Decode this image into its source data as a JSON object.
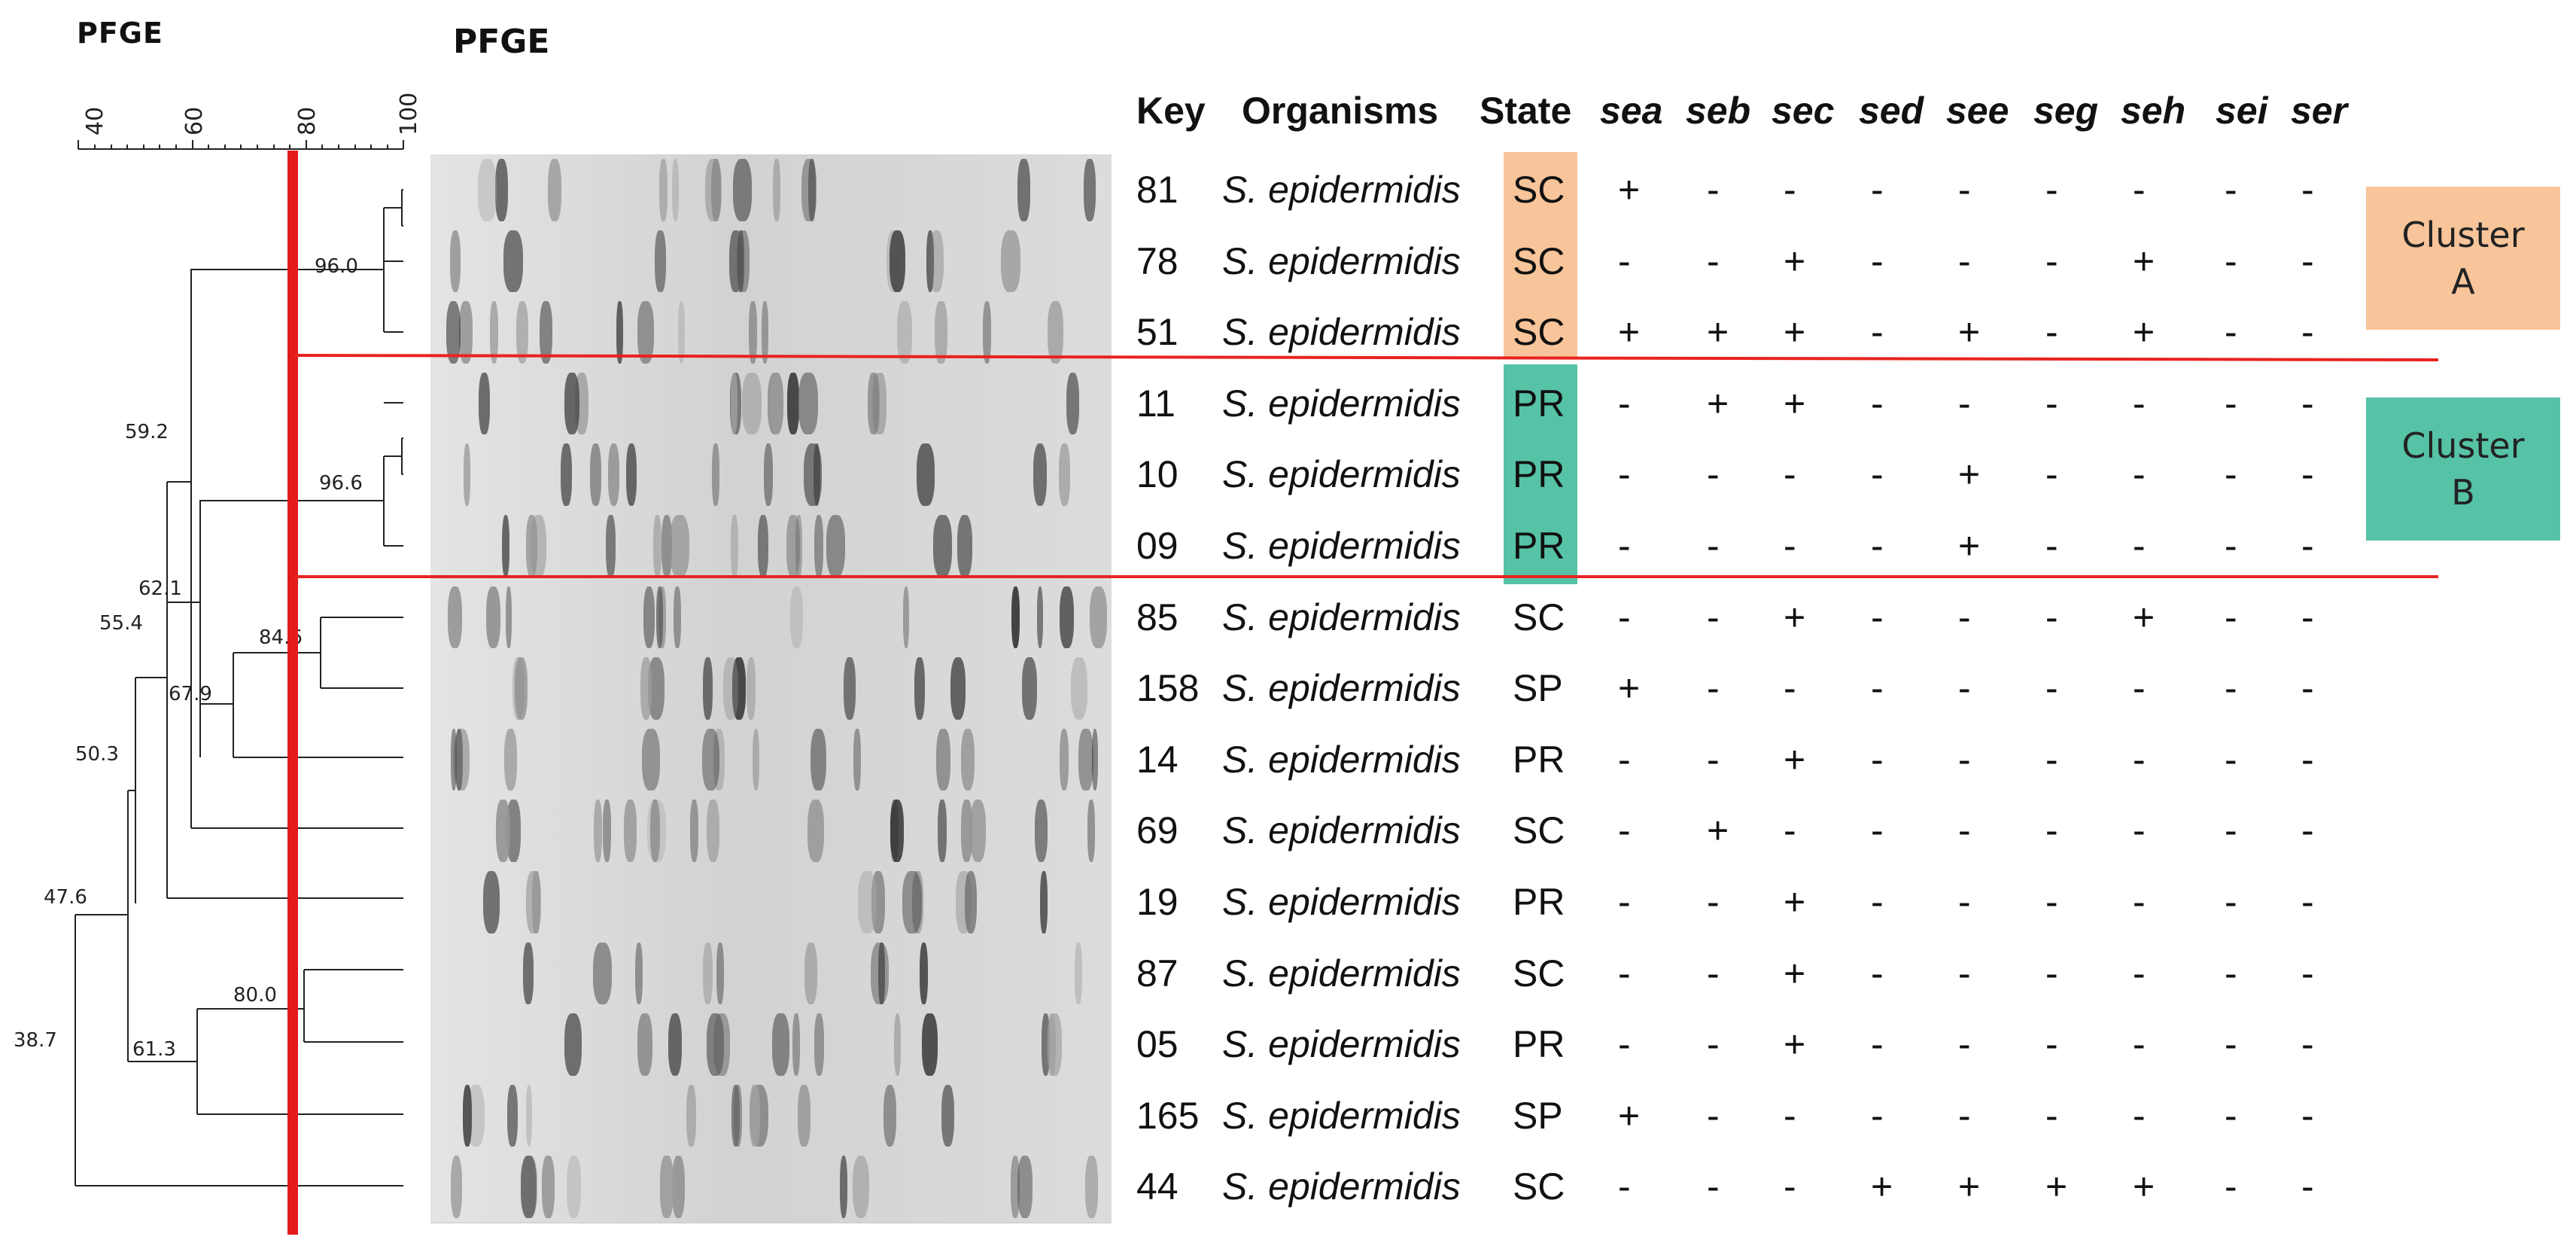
{
  "labels": {
    "pfge_small": "PFGE",
    "pfge_big": "PFGE"
  },
  "scale": {
    "ticks": [
      "40",
      "60",
      "80",
      "100"
    ]
  },
  "headers": {
    "key": "Key",
    "organisms": "Organisms",
    "state": "State",
    "genes": [
      "sea",
      "seb",
      "sec",
      "sed",
      "see",
      "seg",
      "seh",
      "sei",
      "ser"
    ]
  },
  "node_labels": [
    "96.0",
    "59.2",
    "96.6",
    "62.1",
    "55.4",
    "84.6",
    "67.9",
    "50.3",
    "47.6",
    "80.0",
    "61.3",
    "38.7"
  ],
  "rows": [
    {
      "key": "81",
      "organism": "S. epidermidis",
      "state": "SC",
      "genes": [
        "+",
        "-",
        "-",
        "-",
        "-",
        "-",
        "-",
        "-",
        "-"
      ]
    },
    {
      "key": "78",
      "organism": "S. epidermidis",
      "state": "SC",
      "genes": [
        "-",
        "-",
        "+",
        "-",
        "-",
        "-",
        "+",
        "-",
        "-"
      ]
    },
    {
      "key": "51",
      "organism": "S. epidermidis",
      "state": "SC",
      "genes": [
        "+",
        "+",
        "+",
        "-",
        "+",
        "-",
        "+",
        "-",
        "-"
      ]
    },
    {
      "key": "11",
      "organism": "S. epidermidis",
      "state": "PR",
      "genes": [
        "-",
        "+",
        "+",
        "-",
        "-",
        "-",
        "-",
        "-",
        "-"
      ]
    },
    {
      "key": "10",
      "organism": "S. epidermidis",
      "state": "PR",
      "genes": [
        "-",
        "-",
        "-",
        "-",
        "+",
        "-",
        "-",
        "-",
        "-"
      ]
    },
    {
      "key": "09",
      "organism": "S. epidermidis",
      "state": "PR",
      "genes": [
        "-",
        "-",
        "-",
        "-",
        "+",
        "-",
        "-",
        "-",
        "-"
      ]
    },
    {
      "key": "85",
      "organism": "S. epidermidis",
      "state": "SC",
      "genes": [
        "-",
        "-",
        "+",
        "-",
        "-",
        "-",
        "+",
        "-",
        "-"
      ]
    },
    {
      "key": "158",
      "organism": "S. epidermidis",
      "state": "SP",
      "genes": [
        "+",
        "-",
        "-",
        "-",
        "-",
        "-",
        "-",
        "-",
        "-"
      ]
    },
    {
      "key": "14",
      "organism": "S. epidermidis",
      "state": "PR",
      "genes": [
        "-",
        "-",
        "+",
        "-",
        "-",
        "-",
        "-",
        "-",
        "-"
      ]
    },
    {
      "key": "69",
      "organism": "S. epidermidis",
      "state": "SC",
      "genes": [
        "-",
        "+",
        "-",
        "-",
        "-",
        "-",
        "-",
        "-",
        "-"
      ]
    },
    {
      "key": "19",
      "organism": "S. epidermidis",
      "state": "PR",
      "genes": [
        "-",
        "-",
        "+",
        "-",
        "-",
        "-",
        "-",
        "-",
        "-"
      ]
    },
    {
      "key": "87",
      "organism": "S. epidermidis",
      "state": "SC",
      "genes": [
        "-",
        "-",
        "+",
        "-",
        "-",
        "-",
        "-",
        "-",
        "-"
      ]
    },
    {
      "key": "05",
      "organism": "S. epidermidis",
      "state": "PR",
      "genes": [
        "-",
        "-",
        "+",
        "-",
        "-",
        "-",
        "-",
        "-",
        "-"
      ]
    },
    {
      "key": "165",
      "organism": "S. epidermidis",
      "state": "SP",
      "genes": [
        "+",
        "-",
        "-",
        "-",
        "-",
        "-",
        "-",
        "-",
        "-"
      ]
    },
    {
      "key": "44",
      "organism": "S. epidermidis",
      "state": "SC",
      "genes": [
        "-",
        "-",
        "-",
        "+",
        "+",
        "+",
        "+",
        "-",
        "-"
      ]
    }
  ],
  "clusters": [
    {
      "label": "Cluster\nA",
      "color": "#f8c49a",
      "first_row": 0,
      "last_row": 2
    },
    {
      "label": "Cluster\nB",
      "color": "#56c2a6",
      "first_row": 3,
      "last_row": 5
    }
  ],
  "colors": {
    "cutoff_line": "#e31a1c",
    "separator": "#e8231f"
  }
}
